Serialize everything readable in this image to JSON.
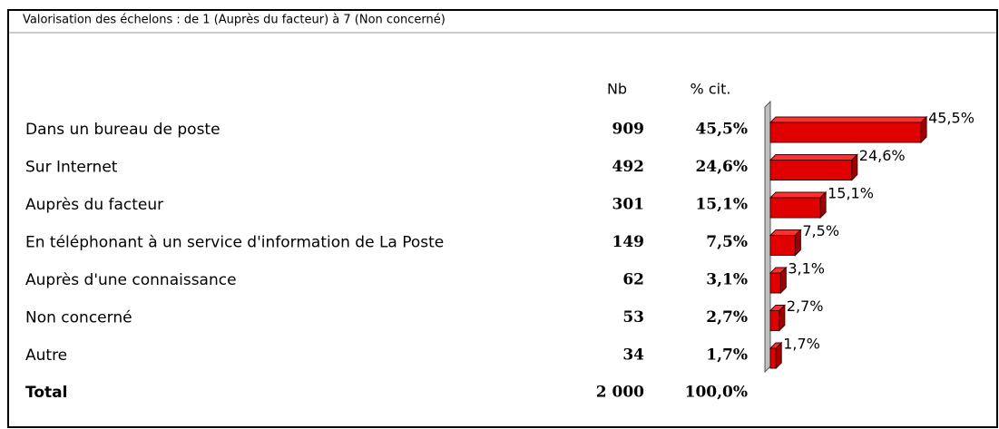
{
  "title": "Valorisation des échelons : de 1 (Auprès du facteur) à 7 (Non concerné)",
  "columns": [
    "Nb",
    "% cit."
  ],
  "rows": [
    {
      "label": "Dans un bureau de poste",
      "nb": 909,
      "pct": 45.5,
      "pct_label": "45,5%"
    },
    {
      "label": "Sur Internet",
      "nb": 492,
      "pct": 24.6,
      "pct_label": "24,6%"
    },
    {
      "label": "Auprès du facteur",
      "nb": 301,
      "pct": 15.1,
      "pct_label": "15,1%"
    },
    {
      "label": "En téléphonant à un service d'information de La Poste",
      "nb": 149,
      "pct": 7.5,
      "pct_label": "7,5%"
    },
    {
      "label": "Auprès d'une connaissance",
      "nb": 62,
      "pct": 3.1,
      "pct_label": "3,1%"
    },
    {
      "label": "Non concerné",
      "nb": 53,
      "pct": 2.7,
      "pct_label": "2,7%"
    },
    {
      "label": "Autre",
      "nb": 34,
      "pct": 1.7,
      "pct_label": "1,7%"
    }
  ],
  "total": {
    "label": "Total",
    "nb": "2 000",
    "pct": "100,0%"
  }
}
